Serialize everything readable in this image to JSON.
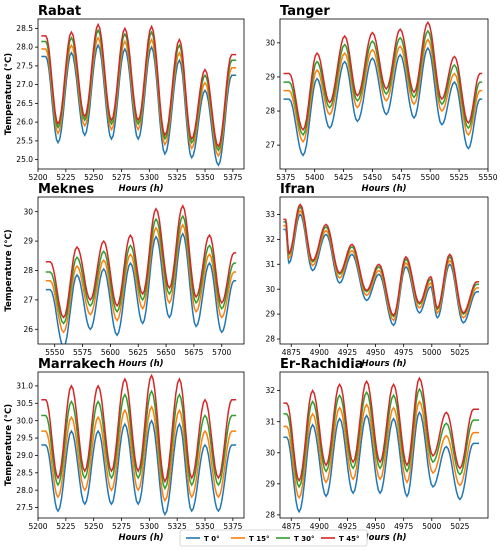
{
  "legend": [
    {
      "label": "T 0°",
      "color": "#1f77b4"
    },
    {
      "label": "T 15°",
      "color": "#ff7f0e"
    },
    {
      "label": "T 30°",
      "color": "#2ca02c"
    },
    {
      "label": "T 45°",
      "color": "#d62728"
    }
  ],
  "legend_placement": "bottom-center",
  "chart_data": [
    {
      "type": "line",
      "title": "Rabat",
      "xlabel": "Hours (h)",
      "ylabel": "Temperature (°C)",
      "xlim": [
        5200,
        5385
      ],
      "ylim": [
        24.75,
        28.75
      ],
      "x_ticks": [
        5200,
        5225,
        5250,
        5275,
        5300,
        5325,
        5350,
        5375
      ],
      "y_ticks": [
        25.0,
        25.5,
        26.0,
        26.5,
        27.0,
        27.5,
        28.0,
        28.5
      ],
      "hour_range": [
        5203,
        5378
      ],
      "peaks": [
        [
          5207,
          28.3
        ],
        [
          5230,
          28.4
        ],
        [
          5254,
          28.6
        ],
        [
          5278,
          28.5
        ],
        [
          5302,
          28.55
        ],
        [
          5327,
          28.2
        ],
        [
          5350,
          27.4
        ],
        [
          5374,
          27.8
        ]
      ],
      "troughs": [
        [
          5218,
          25.6
        ],
        [
          5242,
          25.8
        ],
        [
          5266,
          25.7
        ],
        [
          5290,
          25.7
        ],
        [
          5314,
          25.3
        ],
        [
          5338,
          25.2
        ],
        [
          5362,
          25.0
        ]
      ],
      "series": [
        {
          "name": "T 0°",
          "peak_offset": -0.55,
          "trough_offset": -0.15
        },
        {
          "name": "T 15°",
          "peak_offset": -0.35,
          "trough_offset": 0.1
        },
        {
          "name": "T 30°",
          "peak_offset": -0.15,
          "trough_offset": 0.25
        },
        {
          "name": "T 45°",
          "peak_offset": 0.0,
          "trough_offset": 0.35
        }
      ]
    },
    {
      "type": "line",
      "title": "Tanger",
      "xlabel": "Hours (h)",
      "ylabel": "",
      "xlim": [
        5370,
        5550
      ],
      "ylim": [
        26.3,
        30.7
      ],
      "x_ticks": [
        5375,
        5400,
        5425,
        5450,
        5475,
        5500,
        5525,
        5550
      ],
      "y_ticks": [
        27,
        28,
        29,
        30
      ],
      "hour_range": [
        5373,
        5545
      ],
      "peaks": [
        [
          5378,
          29.1
        ],
        [
          5402,
          29.7
        ],
        [
          5426,
          30.2
        ],
        [
          5450,
          30.3
        ],
        [
          5474,
          30.4
        ],
        [
          5498,
          30.6
        ],
        [
          5521,
          29.6
        ],
        [
          5543,
          29.1
        ]
      ],
      "troughs": [
        [
          5390,
          27.1
        ],
        [
          5413,
          27.9
        ],
        [
          5437,
          28.1
        ],
        [
          5462,
          28.3
        ],
        [
          5486,
          28.2
        ],
        [
          5510,
          28.0
        ],
        [
          5533,
          27.3
        ]
      ],
      "series": [
        {
          "name": "T 0°",
          "peak_offset": -0.75,
          "trough_offset": -0.4
        },
        {
          "name": "T 15°",
          "peak_offset": -0.5,
          "trough_offset": 0.0
        },
        {
          "name": "T 30°",
          "peak_offset": -0.25,
          "trough_offset": 0.2
        },
        {
          "name": "T 45°",
          "peak_offset": 0.0,
          "trough_offset": 0.35
        }
      ]
    },
    {
      "type": "line",
      "title": "Meknes",
      "xlabel": "Hours (h)",
      "ylabel": "Temperature (°C)",
      "xlim": [
        5535,
        5720
      ],
      "ylim": [
        25.5,
        30.5
      ],
      "x_ticks": [
        5550,
        5575,
        5600,
        5625,
        5650,
        5675,
        5700
      ],
      "y_ticks": [
        26,
        27,
        28,
        29,
        30
      ],
      "hour_range": [
        5542,
        5713
      ],
      "peaks": [
        [
          5546,
          28.3
        ],
        [
          5570,
          28.8
        ],
        [
          5594,
          29.0
        ],
        [
          5618,
          29.2
        ],
        [
          5641,
          30.1
        ],
        [
          5665,
          30.2
        ],
        [
          5689,
          29.2
        ],
        [
          5711,
          28.6
        ]
      ],
      "troughs": [
        [
          5558,
          26.1
        ],
        [
          5582,
          26.7
        ],
        [
          5606,
          26.5
        ],
        [
          5629,
          26.9
        ],
        [
          5653,
          27.1
        ],
        [
          5677,
          26.8
        ],
        [
          5700,
          26.6
        ]
      ],
      "series": [
        {
          "name": "T 0°",
          "peak_offset": -0.95,
          "trough_offset": -0.7
        },
        {
          "name": "T 15°",
          "peak_offset": -0.65,
          "trough_offset": -0.2
        },
        {
          "name": "T 30°",
          "peak_offset": -0.35,
          "trough_offset": 0.1
        },
        {
          "name": "T 45°",
          "peak_offset": 0.0,
          "trough_offset": 0.3
        }
      ]
    },
    {
      "type": "line",
      "title": "Ifran",
      "xlabel": "Hours (h)",
      "ylabel": "",
      "xlim": [
        4865,
        5050
      ],
      "ylim": [
        27.8,
        33.7
      ],
      "x_ticks": [
        4875,
        4900,
        4925,
        4950,
        4975,
        5000,
        5025
      ],
      "y_ticks": [
        28,
        29,
        30,
        31,
        32,
        33
      ],
      "hour_range": [
        4868,
        5042
      ],
      "peaks": [
        [
          4870,
          32.8
        ],
        [
          4883,
          33.4
        ],
        [
          4906,
          32.6
        ],
        [
          4929,
          31.8
        ],
        [
          4953,
          31.0
        ],
        [
          4977,
          31.3
        ],
        [
          4999,
          30.5
        ],
        [
          5016,
          31.4
        ],
        [
          5040,
          30.3
        ]
      ],
      "troughs": [
        [
          4873,
          31.4
        ],
        [
          4894,
          31.1
        ],
        [
          4918,
          30.6
        ],
        [
          4942,
          29.9
        ],
        [
          4966,
          28.9
        ],
        [
          4989,
          29.4
        ],
        [
          5005,
          29.2
        ],
        [
          5028,
          29.0
        ]
      ],
      "series": [
        {
          "name": "T 0°",
          "peak_offset": -0.4,
          "trough_offset": -0.35
        },
        {
          "name": "T 15°",
          "peak_offset": -0.25,
          "trough_offset": -0.15
        },
        {
          "name": "T 30°",
          "peak_offset": -0.1,
          "trough_offset": 0.0
        },
        {
          "name": "T 45°",
          "peak_offset": 0.0,
          "trough_offset": 0.05
        }
      ]
    },
    {
      "type": "line",
      "title": "Marrakech",
      "xlabel": "Hours (h)",
      "ylabel": "Temperature (°C)",
      "xlim": [
        5200,
        5385
      ],
      "ylim": [
        27.2,
        31.4
      ],
      "x_ticks": [
        5200,
        5225,
        5250,
        5275,
        5300,
        5325,
        5350,
        5375
      ],
      "y_ticks": [
        27.5,
        28.0,
        28.5,
        29.0,
        29.5,
        30.0,
        30.5,
        31.0
      ],
      "hour_range": [
        5203,
        5378
      ],
      "peaks": [
        [
          5207,
          30.6
        ],
        [
          5230,
          31.0
        ],
        [
          5254,
          31.0
        ],
        [
          5278,
          31.2
        ],
        [
          5302,
          31.3
        ],
        [
          5327,
          31.2
        ],
        [
          5350,
          30.6
        ],
        [
          5374,
          30.6
        ]
      ],
      "troughs": [
        [
          5218,
          28.1
        ],
        [
          5242,
          28.3
        ],
        [
          5266,
          28.3
        ],
        [
          5290,
          28.3
        ],
        [
          5314,
          28.0
        ],
        [
          5338,
          28.1
        ],
        [
          5362,
          28.1
        ]
      ],
      "series": [
        {
          "name": "T 0°",
          "peak_offset": -1.3,
          "trough_offset": -0.7
        },
        {
          "name": "T 15°",
          "peak_offset": -0.9,
          "trough_offset": -0.3
        },
        {
          "name": "T 30°",
          "peak_offset": -0.45,
          "trough_offset": 0.05
        },
        {
          "name": "T 45°",
          "peak_offset": 0.0,
          "trough_offset": 0.25
        }
      ]
    },
    {
      "type": "line",
      "title": "Er-Rachidia",
      "xlabel": "Hours (h)",
      "ylabel": "",
      "xlim": [
        4865,
        5050
      ],
      "ylim": [
        27.9,
        32.6
      ],
      "x_ticks": [
        4875,
        4900,
        4925,
        4950,
        4975,
        5000,
        5025
      ],
      "y_ticks": [
        28,
        29,
        30,
        31,
        32
      ],
      "hour_range": [
        4868,
        5042
      ],
      "peaks": [
        [
          4871,
          31.6
        ],
        [
          4894,
          32.0
        ],
        [
          4918,
          32.2
        ],
        [
          4942,
          32.3
        ],
        [
          4966,
          32.2
        ],
        [
          4989,
          32.4
        ],
        [
          5013,
          31.3
        ],
        [
          5037,
          31.4
        ]
      ],
      "troughs": [
        [
          4882,
          28.9
        ],
        [
          4906,
          29.4
        ],
        [
          4930,
          29.5
        ],
        [
          4954,
          29.5
        ],
        [
          4978,
          29.4
        ],
        [
          5001,
          29.7
        ],
        [
          5025,
          29.3
        ]
      ],
      "series": [
        {
          "name": "T 0°",
          "peak_offset": -1.1,
          "trough_offset": -0.8
        },
        {
          "name": "T 15°",
          "peak_offset": -0.75,
          "trough_offset": -0.35
        },
        {
          "name": "T 30°",
          "peak_offset": -0.35,
          "trough_offset": 0.0
        },
        {
          "name": "T 45°",
          "peak_offset": 0.0,
          "trough_offset": 0.2
        }
      ]
    }
  ]
}
